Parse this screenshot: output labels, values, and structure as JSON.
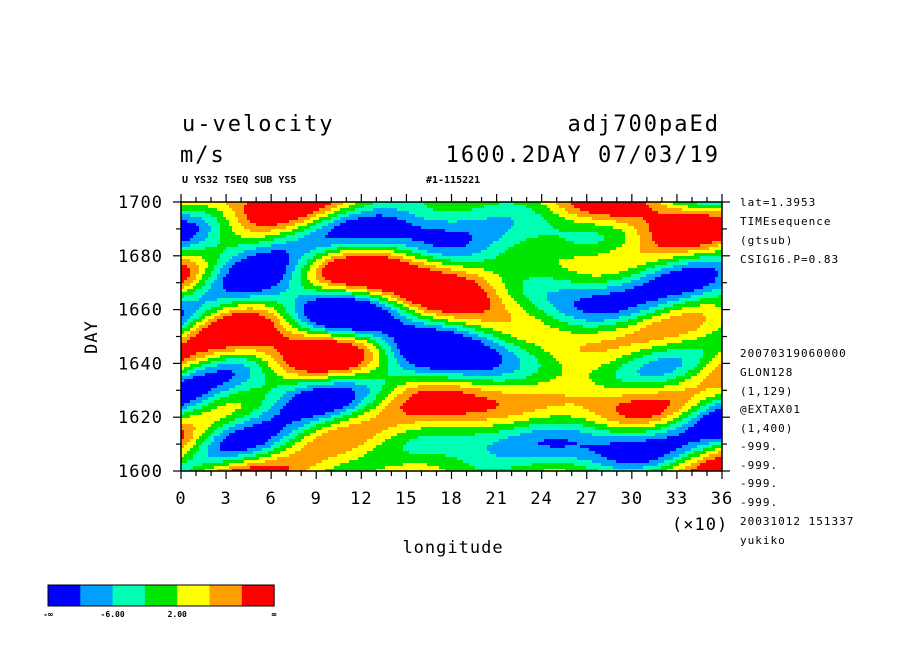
{
  "header": {
    "variable": "u-velocity",
    "units": "m/s",
    "dataset": "adj700paEd",
    "time_stamp": "1600.2DAY 07/03/19",
    "subtitle_left": "U YS32 TSEQ SUB YS5",
    "subtitle_right": "#1-115221"
  },
  "side_info": [
    "lat=1.3953",
    "TIMEsequence",
    "(gtsub)",
    "CSIG16.P=0.83"
  ],
  "side_meta": [
    "20070319060000",
    "GLON128",
    "(1,129)",
    "@EXTAX01",
    "(1,400)",
    "-999.",
    "-999.",
    "-999.",
    "-999.",
    "20031012 151337",
    "yukiko"
  ],
  "chart_data": {
    "type": "heatmap",
    "xlabel": "longitude",
    "x_scale_label": "(×10)",
    "ylabel": "DAY",
    "xlim": [
      0,
      36
    ],
    "ylim": [
      1600,
      1700
    ],
    "x_ticks": [
      0,
      3,
      6,
      9,
      12,
      15,
      18,
      21,
      24,
      27,
      30,
      33,
      36
    ],
    "y_ticks": [
      1600,
      1620,
      1640,
      1660,
      1680,
      1700
    ],
    "colorbar": {
      "colors": [
        "#0000ff",
        "#00a0ff",
        "#00ffb4",
        "#00e600",
        "#ffff00",
        "#ffa000",
        "#ff0000"
      ],
      "labels": [
        "-∞",
        "-6.00",
        "2.00",
        "∞"
      ]
    }
  }
}
